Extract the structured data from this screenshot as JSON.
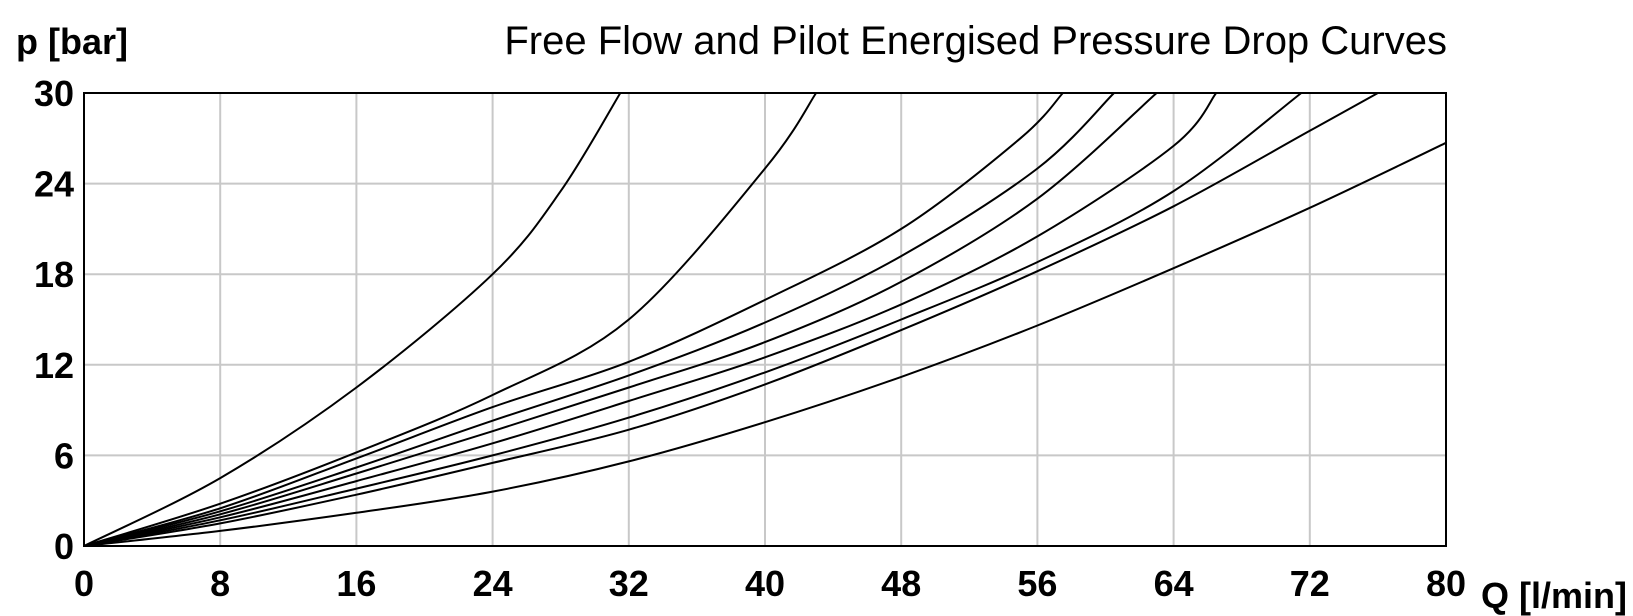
{
  "chart_data": {
    "type": "line",
    "title": "Free Flow and Pilot Energised Pressure Drop Curves",
    "xlabel": "Q [l/min]",
    "ylabel": "p [bar]",
    "xlim": [
      0,
      80
    ],
    "ylim": [
      0,
      30
    ],
    "xticks": [
      "0",
      "8",
      "16",
      "24",
      "32",
      "40",
      "48",
      "56",
      "64",
      "72",
      "80"
    ],
    "yticks": [
      "0",
      "6",
      "12",
      "18",
      "24",
      "30"
    ],
    "grid": true,
    "legend": "none",
    "series": [
      {
        "x": [
          0,
          8,
          16,
          24,
          28,
          31.5
        ],
        "y": [
          0,
          4.5,
          10.5,
          18,
          23.5,
          30
        ]
      },
      {
        "x": [
          0,
          8,
          16,
          24,
          32,
          40,
          43
        ],
        "y": [
          0,
          2.8,
          6.2,
          10,
          15,
          25,
          30
        ]
      },
      {
        "x": [
          0,
          8,
          16,
          24,
          32,
          40,
          48,
          55,
          57.5
        ],
        "y": [
          0,
          2.5,
          5.8,
          9.2,
          12.2,
          16.3,
          21,
          27,
          30
        ]
      },
      {
        "x": [
          0,
          8,
          16,
          24,
          32,
          40,
          48,
          56,
          60.5
        ],
        "y": [
          0,
          2.3,
          5.2,
          8.3,
          11.3,
          14.8,
          19.2,
          25,
          30
        ]
      },
      {
        "x": [
          0,
          8,
          16,
          24,
          32,
          40,
          48,
          56,
          63
        ],
        "y": [
          0,
          2.1,
          4.8,
          7.6,
          10.5,
          13.5,
          17.5,
          23,
          30
        ]
      },
      {
        "x": [
          0,
          8,
          16,
          24,
          32,
          40,
          48,
          56,
          64,
          66.5
        ],
        "y": [
          0,
          1.9,
          4.3,
          6.8,
          9.6,
          12.5,
          16,
          20.5,
          26.5,
          30
        ]
      },
      {
        "x": [
          0,
          8,
          16,
          24,
          32,
          40,
          48,
          56,
          64,
          71.5
        ],
        "y": [
          0,
          1.7,
          3.8,
          6,
          8.5,
          11.5,
          15,
          18.8,
          23.5,
          30
        ]
      },
      {
        "x": [
          0,
          8,
          16,
          24,
          32,
          40,
          48,
          56,
          64,
          72,
          76
        ],
        "y": [
          0,
          1.5,
          3.4,
          5.5,
          7.7,
          10.7,
          14.3,
          18.2,
          22.5,
          27.5,
          30
        ]
      },
      {
        "x": [
          0,
          8,
          16,
          24,
          32,
          40,
          48,
          56,
          64,
          72,
          80
        ],
        "y": [
          0,
          1,
          2.2,
          3.6,
          5.6,
          8.2,
          11.2,
          14.6,
          18.4,
          22.4,
          26.7
        ]
      }
    ]
  }
}
